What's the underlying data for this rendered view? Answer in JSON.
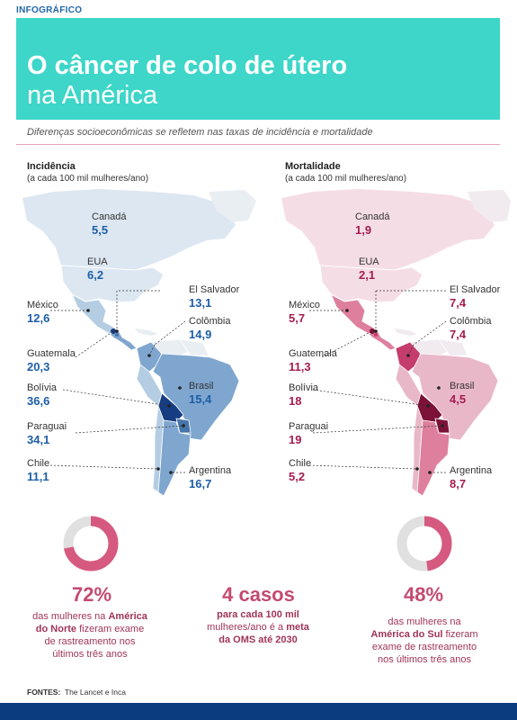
{
  "kicker": "INFOGRÁFICO",
  "title_line1": "O câncer de colo de útero",
  "title_line2": "na América",
  "subtitle": "Diferenças socioeconômicas se refletem nas taxas de incidência e mortalidade",
  "incidence": {
    "title": "Incidência",
    "unit": "(a cada 100 mil mulheres/ano)",
    "countries": [
      {
        "name": "Canadá",
        "value": "5,5"
      },
      {
        "name": "EUA",
        "value": "6,2"
      },
      {
        "name": "México",
        "value": "12,6"
      },
      {
        "name": "El Salvador",
        "value": "13,1"
      },
      {
        "name": "Colômbia",
        "value": "14,9"
      },
      {
        "name": "Guatemala",
        "value": "20,3"
      },
      {
        "name": "Brasil",
        "value": "15,4"
      },
      {
        "name": "Bolívia",
        "value": "36,6"
      },
      {
        "name": "Paraguai",
        "value": "34,1"
      },
      {
        "name": "Chile",
        "value": "11,1"
      },
      {
        "name": "Argentina",
        "value": "16,7"
      }
    ]
  },
  "mortality": {
    "title": "Mortalidade",
    "unit": "(a cada 100 mil mulheres/ano)",
    "countries": [
      {
        "name": "Canadá",
        "value": "1,9"
      },
      {
        "name": "EUA",
        "value": "2,1"
      },
      {
        "name": "México",
        "value": "5,7"
      },
      {
        "name": "El Salvador",
        "value": "7,4"
      },
      {
        "name": "Colômbia",
        "value": "7,4"
      },
      {
        "name": "Guatemala",
        "value": "11,3"
      },
      {
        "name": "Brasil",
        "value": "4,5"
      },
      {
        "name": "Bolívia",
        "value": "18"
      },
      {
        "name": "Paraguai",
        "value": "19"
      },
      {
        "name": "Chile",
        "value": "5,2"
      },
      {
        "name": "Argentina",
        "value": "8,7"
      }
    ]
  },
  "stats": {
    "north": {
      "value": "72%",
      "fraction": 0.72,
      "l1a": "das mulheres na ",
      "l1b": "América",
      "l2a": "do Norte",
      "l2b": " fizeram exame",
      "l3": "de rastreamento nos",
      "l4": "últimos três anos"
    },
    "who": {
      "value": "4 casos",
      "l1": "para cada 100 mil",
      "l2a": "mulheres/ano é a ",
      "l2b": "meta",
      "l3": "da OMS até 2030"
    },
    "south": {
      "value": "48%",
      "fraction": 0.48,
      "l1": "das mulheres na",
      "l2a": "América do Sul",
      "l2b": " fizeram",
      "l3": "exame de rastreamento",
      "l4": "nos últimos três anos"
    }
  },
  "sources_label": "FONTES:",
  "sources_text": "The Lancet e Inca",
  "colors": {
    "header": "#3dd6c9",
    "blue_scale": [
      "#dce7f1",
      "#b4cde3",
      "#7fa6cf",
      "#4674ab",
      "#163d82"
    ],
    "red_scale": [
      "#f5dde6",
      "#e9b8c8",
      "#de7f9e",
      "#c43d6d",
      "#7d1238"
    ],
    "donut_fill": "#d65a80",
    "donut_rest": "#e0e0e0",
    "footer": "#0b3c80"
  }
}
